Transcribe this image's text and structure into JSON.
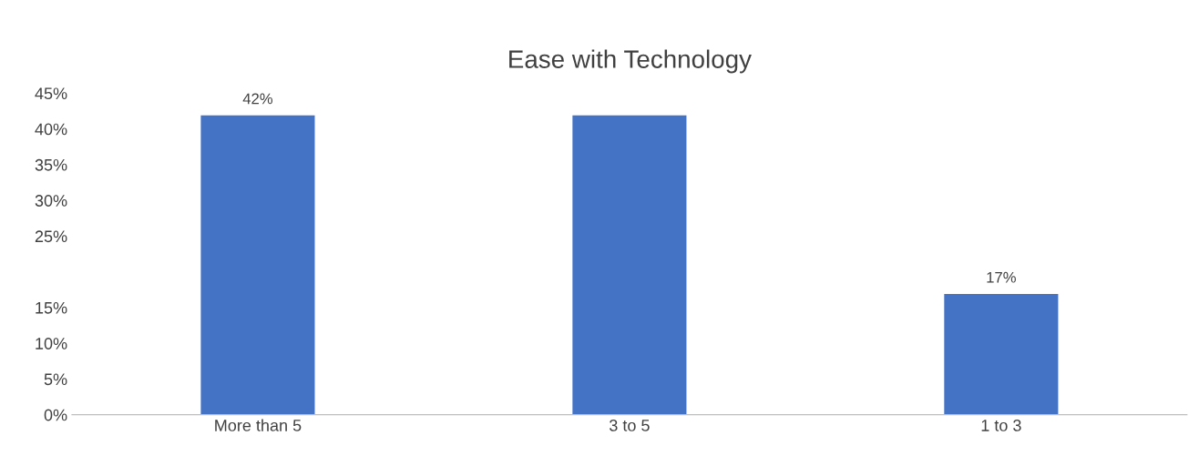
{
  "chart_data": {
    "type": "bar",
    "title": "Ease with Technology",
    "categories": [
      "More than 5",
      "3 to 5",
      "1 to 3"
    ],
    "values": [
      42,
      42,
      17
    ],
    "color": "#4472c4",
    "value_labels": [
      "42%",
      null,
      "17%"
    ],
    "ylim": [
      0,
      45
    ],
    "yticks": [
      {
        "value": 0,
        "label": "0%"
      },
      {
        "value": 5,
        "label": "5%"
      },
      {
        "value": 10,
        "label": "10%"
      },
      {
        "value": 15,
        "label": "15%"
      },
      {
        "value": 25,
        "label": "25%"
      },
      {
        "value": 30,
        "label": "30%"
      },
      {
        "value": 35,
        "label": "35%"
      },
      {
        "value": 40,
        "label": "40%"
      },
      {
        "value": 45,
        "label": "45%"
      }
    ],
    "grid": false,
    "legend": false
  }
}
